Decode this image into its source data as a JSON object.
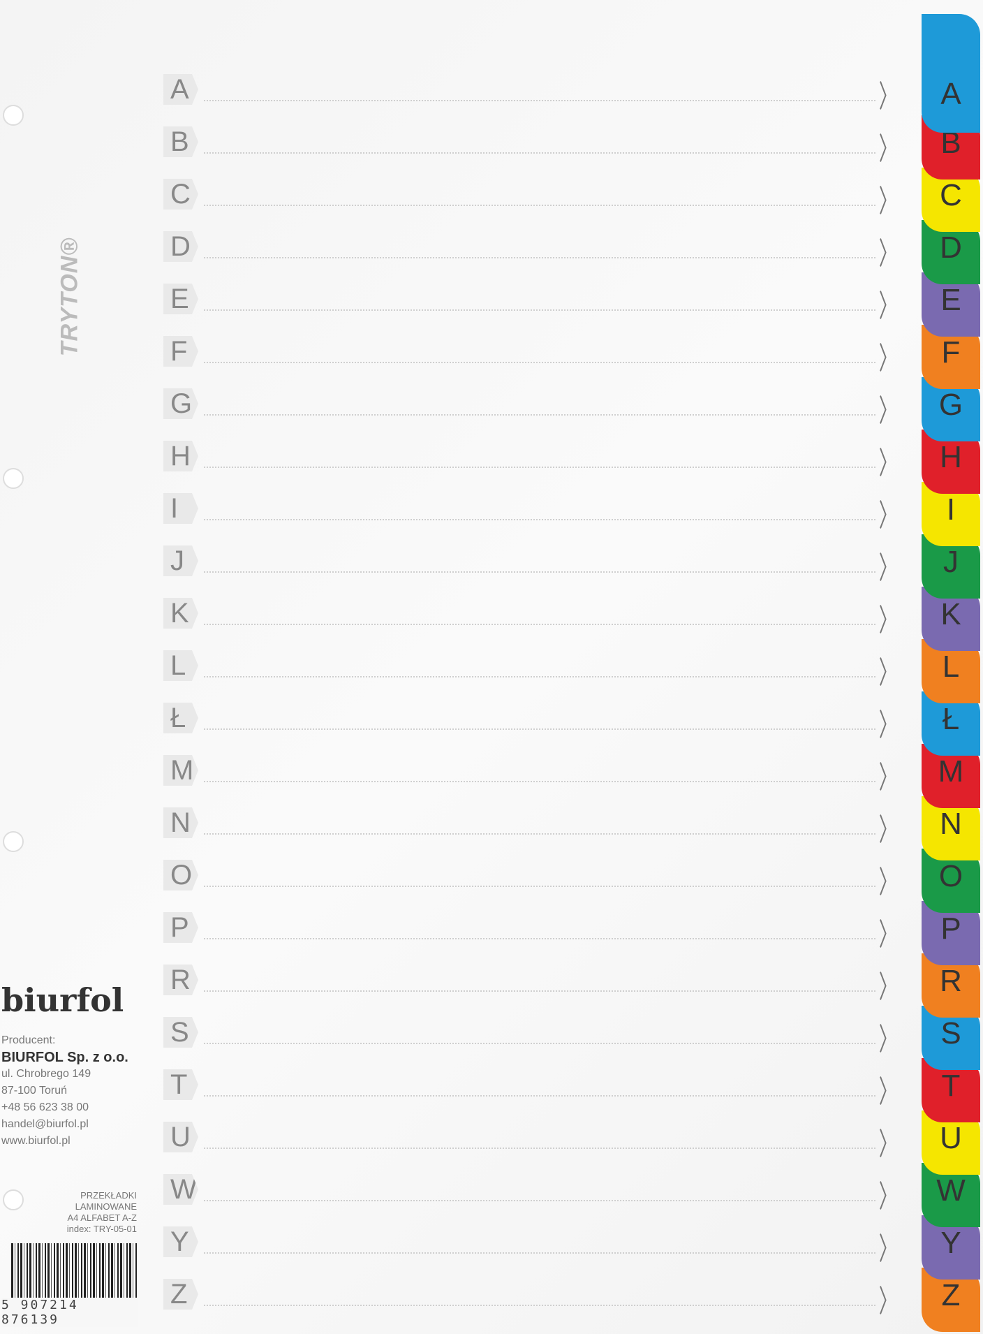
{
  "letters": [
    "A",
    "B",
    "C",
    "D",
    "E",
    "F",
    "G",
    "H",
    "I",
    "J",
    "K",
    "L",
    "Ł",
    "M",
    "N",
    "O",
    "P",
    "R",
    "S",
    "T",
    "U",
    "W",
    "Y",
    "Z"
  ],
  "tab_colors": [
    "#1e9ad8",
    "#e0202a",
    "#f5e600",
    "#1a9a48",
    "#7a6ab0",
    "#f08020"
  ],
  "logo": "TRYTON®",
  "brand": "biurfol",
  "producer": {
    "label": "Producent:",
    "name": "BIURFOL Sp. z o.o.",
    "street": "ul. Chrobrego 149",
    "city": "87-100 Toruń",
    "phone": "+48 56 623 38 00",
    "email": "handel@biurfol.pl",
    "web": "www.biurfol.pl"
  },
  "product": {
    "line1": "PRZEKŁADKI",
    "line2": "LAMINOWANE",
    "line3": "A4 ALFABET A-Z",
    "index": "index: TRY-05-01"
  },
  "ean": "5 907214 876139"
}
